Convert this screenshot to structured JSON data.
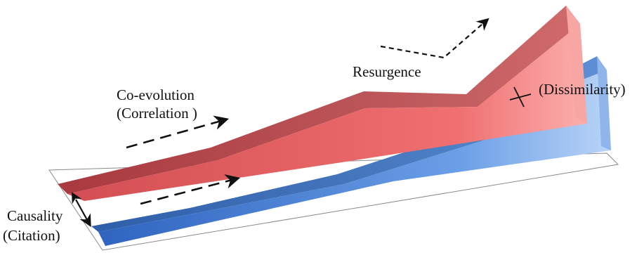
{
  "labels": {
    "coevolution": "Co-evolution",
    "correlation": "(Correlation )",
    "resurgence": "Resurgence",
    "dissimilarity": "(Dissimilarity)",
    "causality": "Causality",
    "citation": "(Citation)"
  },
  "colors": {
    "red_band_top": "#b44a4e",
    "red_band_front": "#e86a6a",
    "blue_band_top": "#3a6fb8",
    "blue_band_front": "#6a9fe4",
    "base_plane_stroke": "#8a8a8a",
    "arrow": "#111111"
  },
  "icons": {
    "dashed_arrows": "dashed-arrow-icon",
    "double_arrow": "double-arrow-icon",
    "cross_mark": "cross-mark-icon"
  }
}
